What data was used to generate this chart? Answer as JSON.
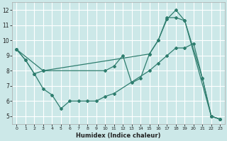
{
  "xlabel": "Humidex (Indice chaleur)",
  "background_color": "#cce8e8",
  "grid_color": "#ffffff",
  "line_color": "#2e7d6e",
  "xlim": [
    -0.5,
    23.5
  ],
  "ylim": [
    4.5,
    12.5
  ],
  "xticks": [
    0,
    1,
    2,
    3,
    4,
    5,
    6,
    7,
    8,
    9,
    10,
    11,
    12,
    13,
    14,
    15,
    16,
    17,
    18,
    19,
    20,
    21,
    22,
    23
  ],
  "yticks": [
    5,
    6,
    7,
    8,
    9,
    10,
    11,
    12
  ],
  "series": [
    {
      "x": [
        0,
        1,
        2,
        3,
        4,
        5,
        6,
        7,
        8,
        9,
        10,
        11,
        15,
        16,
        17,
        18,
        19,
        20,
        21,
        22,
        23
      ],
      "y": [
        9.4,
        8.7,
        7.8,
        6.8,
        6.4,
        5.5,
        6.0,
        6.0,
        6.0,
        6.0,
        6.3,
        6.5,
        8.0,
        8.5,
        9.0,
        9.5,
        9.5,
        9.8,
        7.5,
        5.0,
        4.8
      ]
    },
    {
      "x": [
        0,
        1,
        2,
        3,
        10,
        11,
        12,
        13,
        14,
        15,
        16,
        17,
        18,
        19,
        21,
        22,
        23
      ],
      "y": [
        9.4,
        8.7,
        7.8,
        8.0,
        8.0,
        8.3,
        9.0,
        7.2,
        7.5,
        9.1,
        10.0,
        11.4,
        12.0,
        11.3,
        7.5,
        5.0,
        4.8
      ]
    },
    {
      "x": [
        0,
        3,
        15,
        16,
        17,
        18,
        19,
        22,
        23
      ],
      "y": [
        9.4,
        8.0,
        9.1,
        10.0,
        11.5,
        11.5,
        11.3,
        5.0,
        4.8
      ]
    }
  ]
}
